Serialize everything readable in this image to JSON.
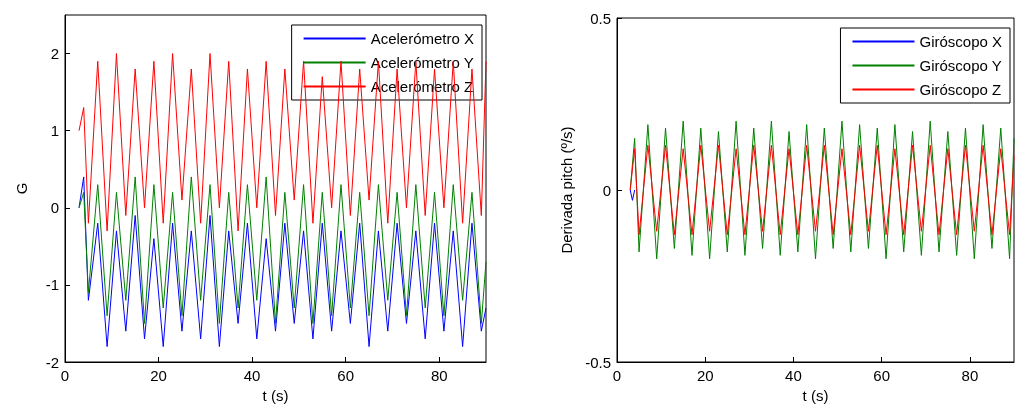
{
  "chart_data": [
    {
      "type": "line",
      "xlabel": "t (s)",
      "ylabel": "G",
      "xlim": [
        0,
        90
      ],
      "xticks": [
        0,
        20,
        40,
        60,
        80
      ],
      "ylim": [
        -2,
        2.5
      ],
      "yticks": [
        -2,
        -1,
        0,
        1,
        2
      ],
      "legend": "top right",
      "marker": "none",
      "x": [
        3,
        4,
        5,
        7,
        9,
        11,
        13,
        15,
        17,
        19,
        21,
        23,
        25,
        27,
        29,
        31,
        33,
        35,
        37,
        39,
        41,
        43,
        45,
        47,
        49,
        51,
        53,
        55,
        57,
        59,
        61,
        63,
        65,
        67,
        69,
        71,
        73,
        75,
        77,
        79,
        81,
        83,
        85,
        87,
        89,
        90
      ],
      "series": [
        {
          "name": "Acelerómetro X",
          "color": "#0000ff",
          "values": [
            0,
            0.4,
            -1.2,
            -0.2,
            -1.8,
            -0.3,
            -1.6,
            -0.1,
            -1.7,
            -0.4,
            -1.8,
            -0.2,
            -1.6,
            -0.3,
            -1.7,
            -0.1,
            -1.8,
            -0.3,
            -1.5,
            -0.2,
            -1.7,
            -0.4,
            -1.6,
            -0.2,
            -1.5,
            -0.3,
            -1.7,
            -0.2,
            -1.6,
            -0.3,
            -1.5,
            -0.2,
            -1.8,
            -0.3,
            -1.6,
            -0.2,
            -1.5,
            -0.3,
            -1.7,
            -0.2,
            -1.6,
            -0.3,
            -1.8,
            -0.2,
            -1.6,
            -1.3
          ]
        },
        {
          "name": "Acelerómetro Y",
          "color": "#008000",
          "values": [
            0,
            0.2,
            -1.1,
            0.3,
            -1.4,
            0.2,
            -1.2,
            0.4,
            -1.5,
            0.3,
            -1.3,
            0.2,
            -1.4,
            0.4,
            -1.2,
            0.3,
            -1.5,
            0.2,
            -1.3,
            0.3,
            -1.2,
            0.4,
            -1.5,
            0.2,
            -1.3,
            0.3,
            -1.5,
            0.2,
            -1.4,
            0.3,
            -1.3,
            0.2,
            -1.4,
            0.3,
            -1.2,
            0.2,
            -1.4,
            0.3,
            -1.3,
            0.2,
            -1.4,
            0.3,
            -1.2,
            0.2,
            -1.5,
            -0.7
          ]
        },
        {
          "name": "Acelerómetro Z",
          "color": "#ff0000",
          "values": [
            1,
            1.3,
            -0.2,
            1.9,
            -0.3,
            2.0,
            -0.1,
            1.8,
            0.0,
            1.9,
            -0.2,
            2.0,
            0.1,
            1.8,
            -0.2,
            2.0,
            0.0,
            1.9,
            -0.3,
            1.8,
            0.0,
            1.9,
            -0.1,
            1.8,
            0.1,
            1.9,
            -0.2,
            1.7,
            0.0,
            1.9,
            -0.1,
            1.8,
            0.1,
            1.9,
            -0.2,
            1.8,
            0.0,
            1.9,
            -0.1,
            1.8,
            0.0,
            1.9,
            -0.2,
            1.8,
            -0.1,
            1.9
          ]
        }
      ]
    },
    {
      "type": "line",
      "xlabel": "t (s)",
      "ylabel": "Derivada pitch (º/s)",
      "xlim": [
        0,
        90
      ],
      "xticks": [
        0,
        20,
        40,
        60,
        80
      ],
      "ylim": [
        -0.5,
        0.5
      ],
      "yticks": [
        -0.5,
        0,
        0.5
      ],
      "legend": "top right",
      "marker": "none",
      "x": [
        3,
        4,
        5,
        7,
        9,
        11,
        13,
        15,
        17,
        19,
        21,
        23,
        25,
        27,
        29,
        31,
        33,
        35,
        37,
        39,
        41,
        43,
        45,
        47,
        49,
        51,
        53,
        55,
        57,
        59,
        61,
        63,
        65,
        67,
        69,
        71,
        73,
        75,
        77,
        79,
        81,
        83,
        85,
        87,
        89,
        90
      ],
      "series": [
        {
          "name": "Giróscopo X",
          "color": "#0000ff",
          "x": [
            3,
            3.5,
            4
          ],
          "values": [
            0,
            -0.03,
            0
          ]
        },
        {
          "name": "Giróscopo Y",
          "color": "#008000",
          "values": [
            0,
            0.15,
            -0.18,
            0.19,
            -0.2,
            0.18,
            -0.17,
            0.2,
            -0.19,
            0.18,
            -0.2,
            0.17,
            -0.18,
            0.2,
            -0.19,
            0.18,
            -0.17,
            0.2,
            -0.19,
            0.17,
            -0.18,
            0.19,
            -0.2,
            0.18,
            -0.17,
            0.2,
            -0.18,
            0.19,
            -0.17,
            0.18,
            -0.2,
            0.19,
            -0.18,
            0.17,
            -0.19,
            0.2,
            -0.18,
            0.17,
            -0.19,
            0.18,
            -0.2,
            0.19,
            -0.17,
            0.18,
            -0.2,
            0.15
          ]
        },
        {
          "name": "Giróscopo Z",
          "color": "#ff0000",
          "values": [
            0,
            0.12,
            -0.13,
            0.13,
            -0.12,
            0.13,
            -0.13,
            0.12,
            -0.13,
            0.13,
            -0.12,
            0.13,
            -0.13,
            0.12,
            -0.13,
            0.13,
            -0.12,
            0.13,
            -0.13,
            0.12,
            -0.13,
            0.13,
            -0.12,
            0.13,
            -0.13,
            0.12,
            -0.13,
            0.13,
            -0.12,
            0.13,
            -0.13,
            0.12,
            -0.13,
            0.13,
            -0.12,
            0.13,
            -0.13,
            0.12,
            -0.13,
            0.13,
            -0.12,
            0.13,
            -0.13,
            0.12,
            -0.13,
            0.1
          ]
        }
      ]
    }
  ]
}
